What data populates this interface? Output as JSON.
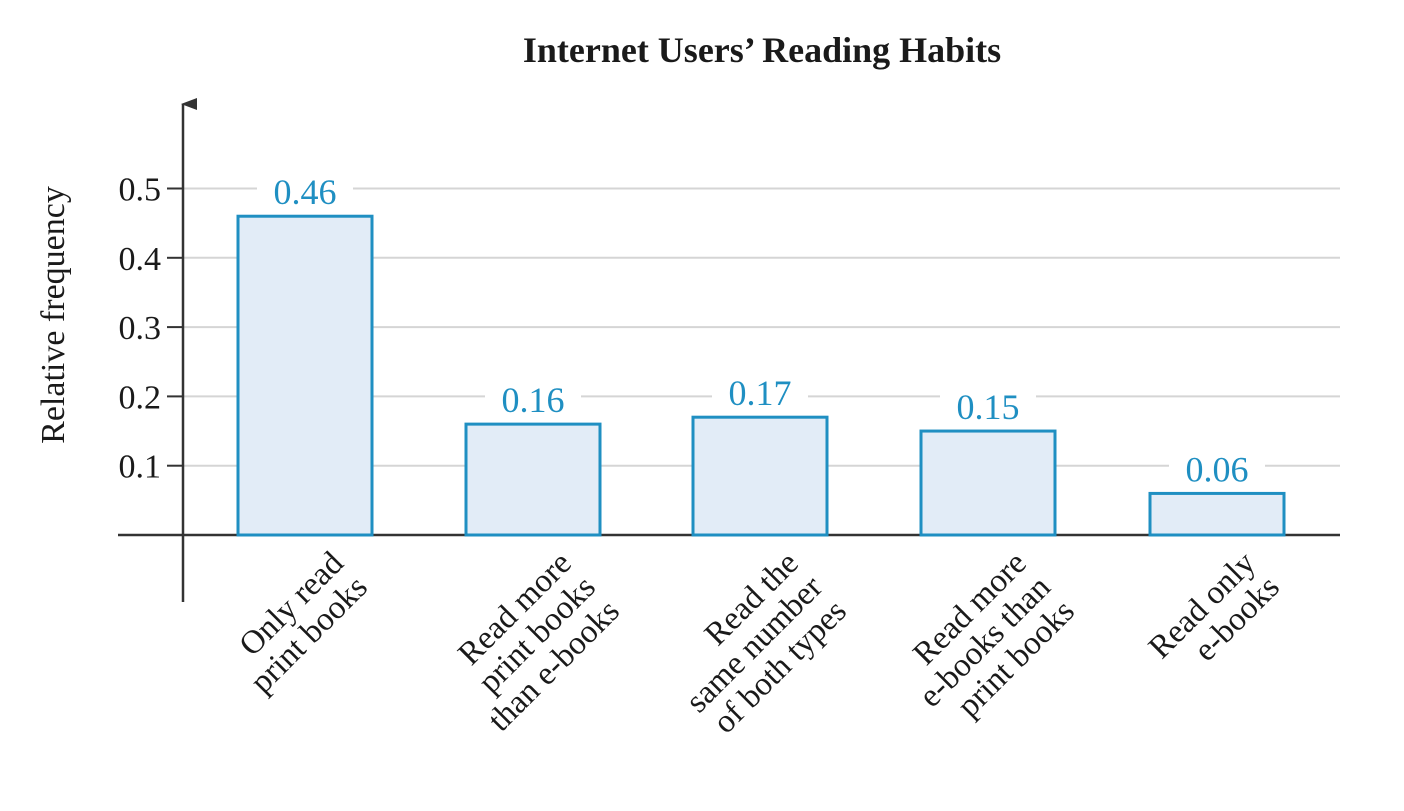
{
  "chart_data": {
    "type": "bar",
    "title": "Internet Users’ Reading Habits",
    "xlabel": "",
    "ylabel": "Relative frequency",
    "ylim": [
      0,
      0.5
    ],
    "yticks": [
      "0.1",
      "0.2",
      "0.3",
      "0.4",
      "0.5"
    ],
    "grid": "horizontal",
    "categories": [
      [
        "Only read",
        "print books"
      ],
      [
        "Read more",
        "print books",
        "than e-books"
      ],
      [
        "Read the",
        "same number",
        "of both types"
      ],
      [
        "Read more",
        "e-books than",
        "print books"
      ],
      [
        "Read only",
        "e-books"
      ]
    ],
    "values": [
      0.46,
      0.16,
      0.17,
      0.15,
      0.06
    ],
    "data_labels": [
      "0.46",
      "0.16",
      "0.17",
      "0.15",
      "0.06"
    ],
    "colors": {
      "bar_fill": "#e2ecf7",
      "bar_stroke": "#1f8fc2",
      "label": "#1f8fc2",
      "grid": "#d5d5d5",
      "axis": "#333333"
    }
  }
}
